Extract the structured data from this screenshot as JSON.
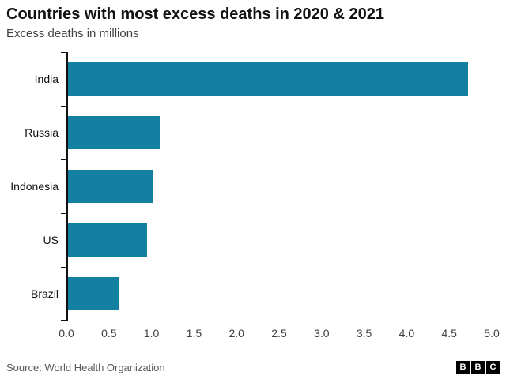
{
  "header": {
    "title": "Countries with most excess deaths in 2020 & 2021",
    "subtitle": "Excess deaths in millions"
  },
  "chart_data": {
    "type": "bar",
    "orientation": "horizontal",
    "title": "Countries with most excess deaths in 2020 & 2021",
    "subtitle": "Excess deaths in millions",
    "categories": [
      "India",
      "Russia",
      "Indonesia",
      "US",
      "Brazil"
    ],
    "values": [
      4.7,
      1.08,
      1.0,
      0.93,
      0.6
    ],
    "xlabel": "",
    "ylabel": "",
    "xlim": [
      0,
      5.0
    ],
    "xticks": [
      "0.0",
      "0.5",
      "1.0",
      "1.5",
      "2.0",
      "2.5",
      "3.0",
      "3.5",
      "4.0",
      "4.5",
      "5.0"
    ],
    "bar_color": "#1380A1",
    "grid": false,
    "legend": "none"
  },
  "footer": {
    "source": "Source: World Health Organization",
    "logo_letters": [
      "B",
      "B",
      "C"
    ]
  }
}
